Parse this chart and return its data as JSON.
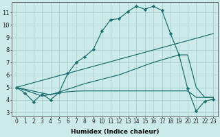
{
  "xlabel": "Humidex (Indice chaleur)",
  "background_color": "#cdeaea",
  "grid_color": "#aacfcf",
  "line_color": "#1e7070",
  "xlim": [
    -0.5,
    23.5
  ],
  "ylim": [
    2.7,
    11.8
  ],
  "yticks": [
    3,
    4,
    5,
    6,
    7,
    8,
    9,
    10,
    11
  ],
  "xticks": [
    0,
    1,
    2,
    3,
    4,
    5,
    6,
    7,
    8,
    9,
    10,
    11,
    12,
    13,
    14,
    15,
    16,
    17,
    18,
    19,
    20,
    21,
    22,
    23
  ],
  "line1_x": [
    0,
    1,
    2,
    3,
    4,
    5,
    6,
    7,
    8,
    9,
    10,
    11,
    12,
    13,
    14,
    15,
    16,
    17,
    18,
    19,
    20,
    21,
    22,
    23
  ],
  "line1_y": [
    5.0,
    4.55,
    3.85,
    4.45,
    4.0,
    4.6,
    6.1,
    7.0,
    7.45,
    8.05,
    9.5,
    10.4,
    10.5,
    11.05,
    11.5,
    11.25,
    11.5,
    11.15,
    9.3,
    7.6,
    4.9,
    3.1,
    3.9,
    4.05
  ],
  "line2_x": [
    0,
    23
  ],
  "line2_y": [
    5.0,
    9.3
  ],
  "line3_x": [
    0,
    4,
    8,
    12,
    16,
    19,
    20,
    21,
    22,
    23
  ],
  "line3_y": [
    5.0,
    4.4,
    5.3,
    6.0,
    7.0,
    7.6,
    7.6,
    5.0,
    4.2,
    4.2
  ],
  "line4_x": [
    0,
    2,
    3,
    4,
    5,
    6,
    7,
    8,
    9,
    10,
    11,
    12,
    13,
    14,
    15,
    16,
    17,
    18,
    19,
    20,
    21,
    22,
    23
  ],
  "line4_y": [
    5.0,
    4.55,
    4.3,
    4.45,
    4.55,
    4.65,
    4.7,
    4.72,
    4.72,
    4.72,
    4.72,
    4.72,
    4.72,
    4.72,
    4.72,
    4.72,
    4.72,
    4.72,
    4.72,
    4.72,
    4.2,
    4.2,
    4.2
  ],
  "xlabel_fontsize": 6.5,
  "tick_fontsize": 5.5
}
